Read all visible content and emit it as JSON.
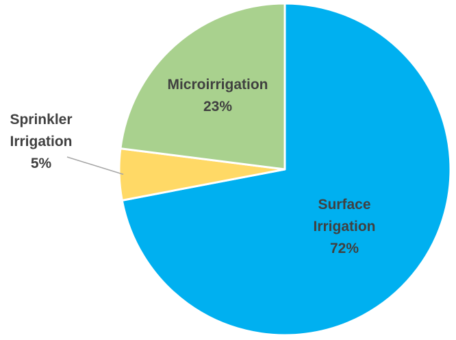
{
  "chart_data": {
    "type": "pie",
    "title": "",
    "start_angle_deg": 0,
    "direction": "clockwise",
    "slices": [
      {
        "label": [
          "Surface",
          "Irrigation"
        ],
        "value_label": "72%",
        "value": 72,
        "color": "#00B0F0"
      },
      {
        "label": [
          "Sprinkler",
          "Irrigation"
        ],
        "value_label": "5%",
        "value": 5,
        "color": "#FFD966"
      },
      {
        "label": [
          "Microirrigation"
        ],
        "value_label": "23%",
        "value": 23,
        "color": "#A9D18E"
      }
    ],
    "label_color": "#404040",
    "border_color": "#FFFFFF",
    "leader_line_color": "#A6A6A6"
  }
}
